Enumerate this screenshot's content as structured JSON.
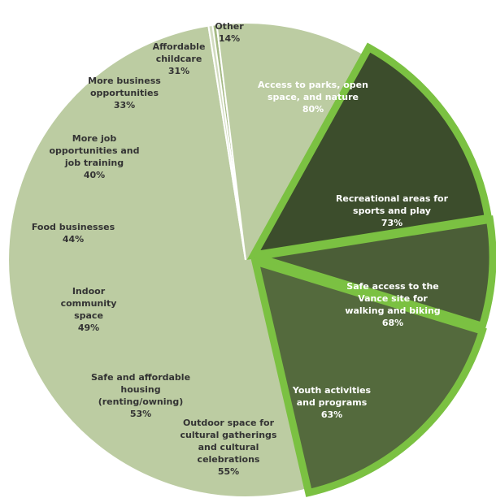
{
  "chart_data": {
    "type": "pie",
    "slices": [
      {
        "label": [
          "Other"
        ],
        "value": "14%",
        "color": "#e3e3e1",
        "highlight": false
      },
      {
        "label": [
          "Access to parks, open",
          "space, and nature"
        ],
        "value": "80%",
        "color": "#3c4d2c",
        "highlight": true
      },
      {
        "label": [
          "Recreational areas for",
          "sports and play"
        ],
        "value": "73%",
        "color": "#4b5e37",
        "highlight": true
      },
      {
        "label": [
          "Safe access to the",
          "Vance site for",
          "walking and biking"
        ],
        "value": "68%",
        "color": "#546a3d",
        "highlight": true
      },
      {
        "label": [
          "Youth activities",
          "and programs"
        ],
        "value": "63%",
        "color": "#657c4b",
        "highlight": false
      },
      {
        "label": [
          "Outdoor space for",
          "cultural gatherings",
          "and cultural",
          "celebrations"
        ],
        "value": "55%",
        "color": "#8a8a8a",
        "highlight": false
      },
      {
        "label": [
          "Safe and affordable",
          "housing",
          "(renting/owning)"
        ],
        "value": "53%",
        "color": "#9a9a9a",
        "highlight": false
      },
      {
        "label": [
          "Indoor",
          "community",
          "space"
        ],
        "value": "49%",
        "color": "#aaaaaa",
        "highlight": false
      },
      {
        "label": [
          "Food businesses"
        ],
        "value": "44%",
        "color": "#b9b9b9",
        "highlight": false
      },
      {
        "label": [
          "More job",
          "opportunities and",
          "job training"
        ],
        "value": "40%",
        "color": "#a6bb86",
        "highlight": false
      },
      {
        "label": [
          "More business",
          "opportunities"
        ],
        "value": "33%",
        "color": "#bccca2",
        "highlight": false
      },
      {
        "label": [
          "Affordable",
          "childcare"
        ],
        "value": "31%",
        "color": "#d2dcc0",
        "highlight": false
      }
    ],
    "highlight_color": "#7bc142"
  }
}
